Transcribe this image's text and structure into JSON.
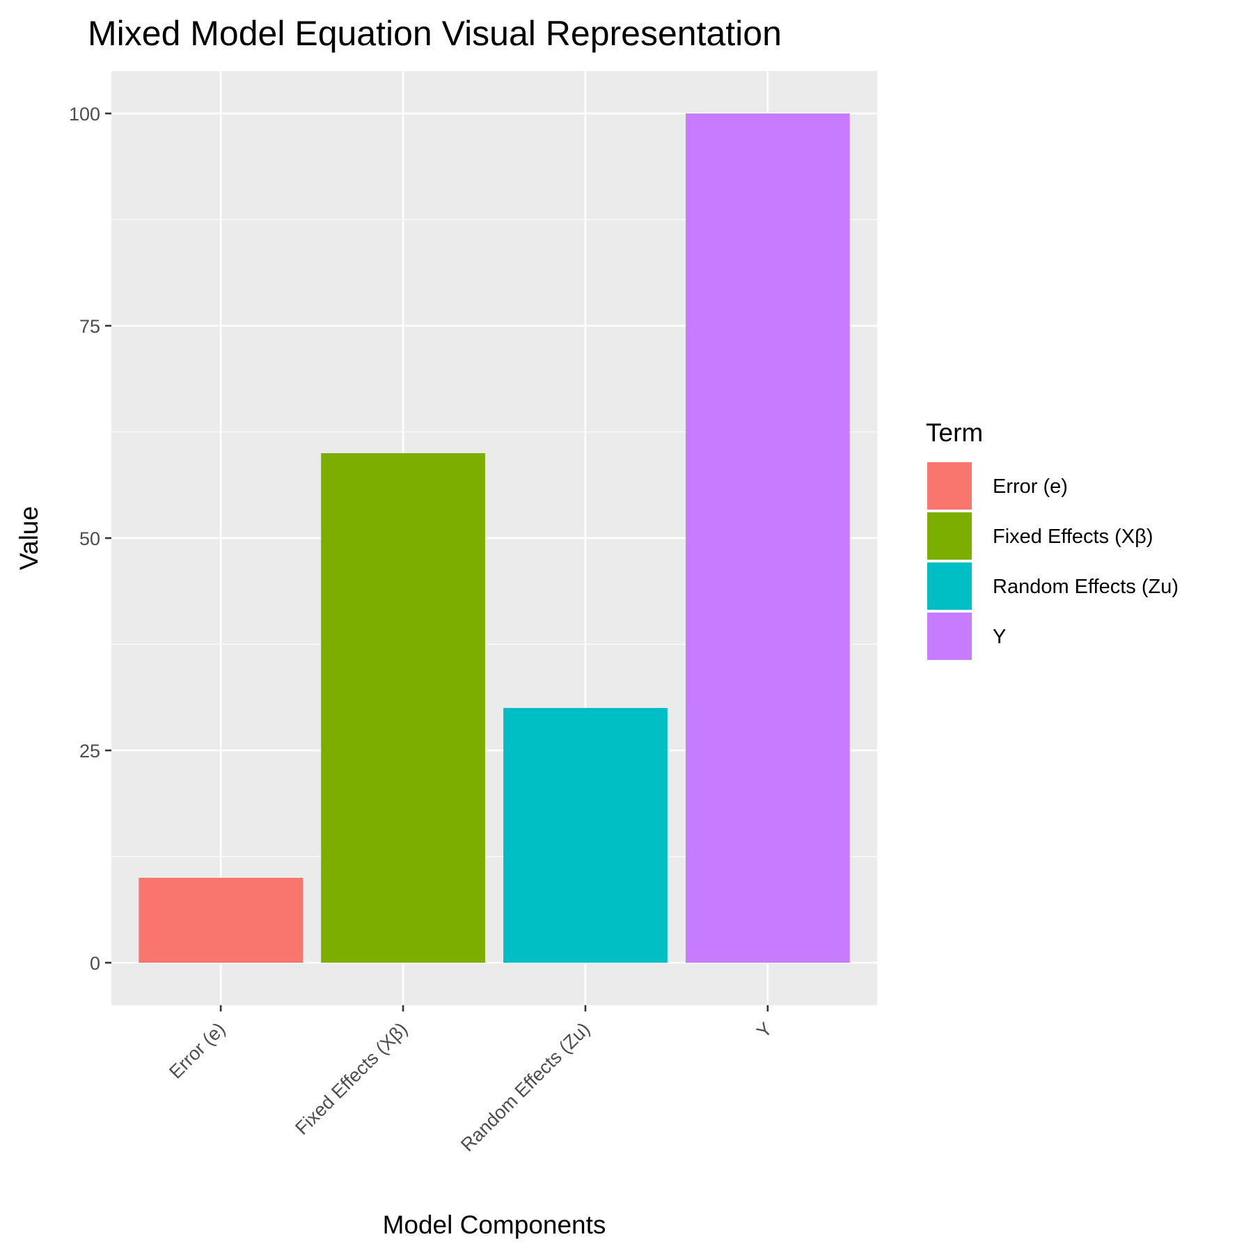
{
  "chart_data": {
    "type": "bar",
    "title": "Mixed Model Equation Visual Representation",
    "xlabel": "Model Components",
    "ylabel": "Value",
    "categories": [
      "Error (e)",
      "Fixed Effects (Xβ)",
      "Random Effects (Zu)",
      "Y"
    ],
    "values": [
      10,
      60,
      30,
      100
    ],
    "colors": [
      "#F8766D",
      "#7CAE00",
      "#00BFC4",
      "#C77CFF"
    ],
    "ylim": [
      -5,
      105
    ],
    "yticks": [
      0,
      25,
      50,
      75,
      100
    ],
    "grid": true,
    "legend": {
      "title": "Term",
      "placement": "right",
      "entries": [
        "Error (e)",
        "Fixed Effects (Xβ)",
        "Random Effects (Zu)",
        "Y"
      ]
    }
  }
}
